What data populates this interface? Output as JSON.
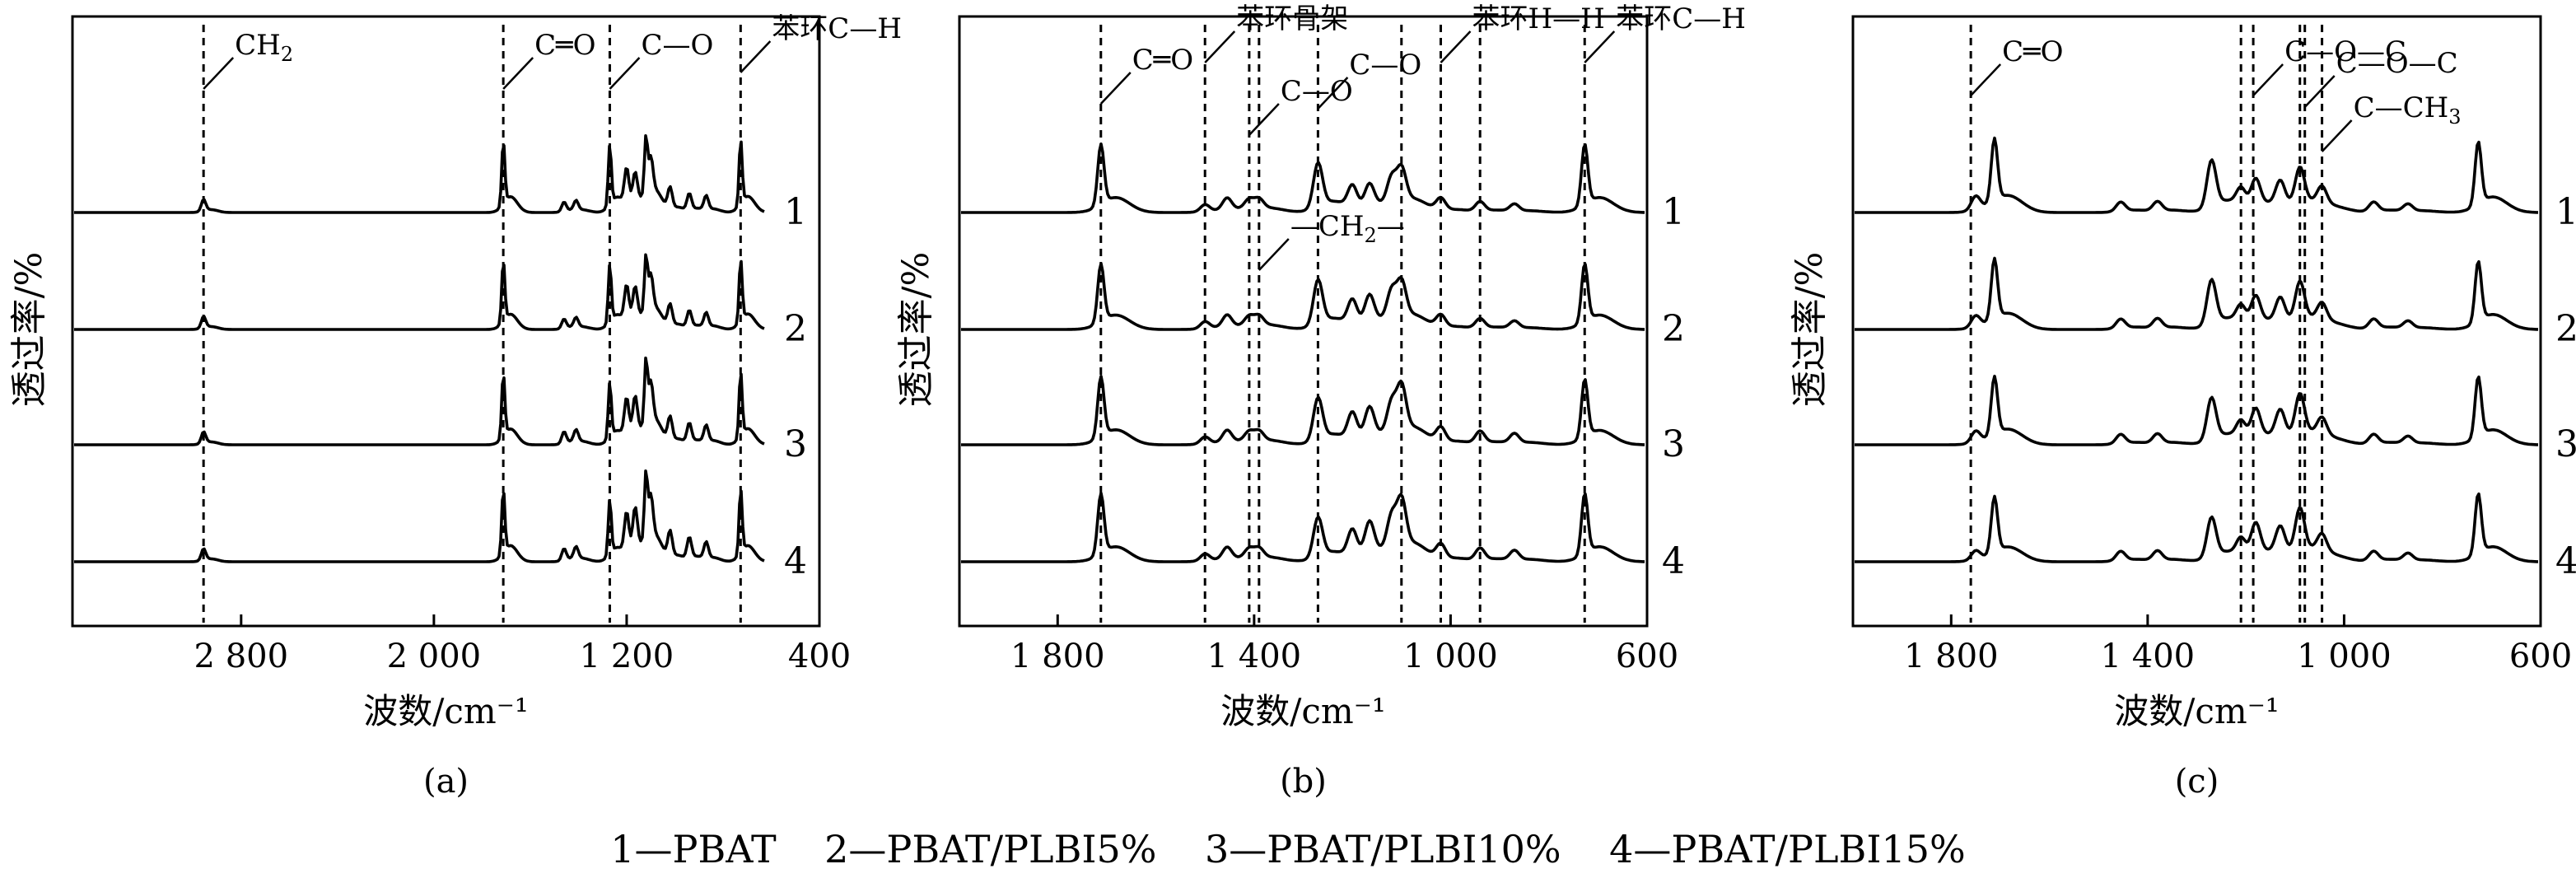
{
  "chart_data": [
    {
      "panel_label": "(a)",
      "type": "line",
      "xlabel": "波数/cm⁻¹",
      "ylabel": "透过率/%",
      "xlim": [
        3500,
        400
      ],
      "x_reversed": true,
      "x_ticks": [
        2800,
        2000,
        1200,
        400
      ],
      "x_tick_labels": [
        "2 800",
        "2 000",
        "1 200",
        "400"
      ],
      "series": [
        {
          "name": "1",
          "offset": 3,
          "peaks": [
            [
              2956,
              10
            ],
            [
              1712,
              55
            ],
            [
              1460,
              8
            ],
            [
              1410,
              8
            ],
            [
              1270,
              52
            ],
            [
              1200,
              30
            ],
            [
              1165,
              24
            ],
            [
              1120,
              50
            ],
            [
              1100,
              30
            ],
            [
              1020,
              18
            ],
            [
              940,
              14
            ],
            [
              870,
              12
            ],
            [
              727,
              56
            ]
          ]
        },
        {
          "name": "2",
          "offset": 2,
          "peaks": [
            [
              2956,
              10
            ],
            [
              1712,
              53
            ],
            [
              1460,
              8
            ],
            [
              1410,
              8
            ],
            [
              1270,
              50
            ],
            [
              1200,
              30
            ],
            [
              1165,
              26
            ],
            [
              1120,
              48
            ],
            [
              1100,
              30
            ],
            [
              1020,
              18
            ],
            [
              940,
              14
            ],
            [
              870,
              12
            ],
            [
              727,
              54
            ]
          ]
        },
        {
          "name": "3",
          "offset": 1,
          "peaks": [
            [
              2956,
              10
            ],
            [
              1712,
              55
            ],
            [
              1460,
              10
            ],
            [
              1410,
              10
            ],
            [
              1270,
              48
            ],
            [
              1200,
              32
            ],
            [
              1165,
              30
            ],
            [
              1120,
              56
            ],
            [
              1100,
              34
            ],
            [
              1020,
              20
            ],
            [
              940,
              16
            ],
            [
              870,
              14
            ],
            [
              727,
              56
            ]
          ]
        },
        {
          "name": "4",
          "offset": 0,
          "peaks": [
            [
              2956,
              10
            ],
            [
              1712,
              56
            ],
            [
              1460,
              10
            ],
            [
              1410,
              10
            ],
            [
              1270,
              48
            ],
            [
              1200,
              34
            ],
            [
              1165,
              34
            ],
            [
              1120,
              58
            ],
            [
              1100,
              36
            ],
            [
              1020,
              22
            ],
            [
              940,
              18
            ],
            [
              870,
              14
            ],
            [
              727,
              56
            ]
          ]
        }
      ],
      "reference_lines": [
        2956,
        1712,
        1270,
        727
      ],
      "annotations": [
        {
          "text": "CH",
          "sub": "2",
          "x": 2956
        },
        {
          "text": "C═O",
          "x": 1712
        },
        {
          "text": "C—O",
          "x": 1270
        },
        {
          "text": "苯环C—H",
          "x": 727
        }
      ]
    },
    {
      "panel_label": "(b)",
      "type": "line",
      "xlabel": "波数/cm⁻¹",
      "ylabel": "透过率/%",
      "xlim": [
        2000,
        600
      ],
      "x_reversed": true,
      "x_ticks": [
        1800,
        1400,
        1000,
        600
      ],
      "x_tick_labels": [
        "1 800",
        "1 400",
        "1 000",
        "600"
      ],
      "series": [
        {
          "name": "1",
          "offset": 3,
          "peaks": [
            [
              1712,
              52
            ],
            [
              1500,
              6
            ],
            [
              1455,
              10
            ],
            [
              1410,
              8
            ],
            [
              1390,
              8
            ],
            [
              1270,
              38
            ],
            [
              1200,
              18
            ],
            [
              1165,
              18
            ],
            [
              1120,
              22
            ],
            [
              1100,
              28
            ],
            [
              1020,
              10
            ],
            [
              940,
              8
            ],
            [
              870,
              6
            ],
            [
              727,
              52
            ]
          ]
        },
        {
          "name": "2",
          "offset": 2,
          "peaks": [
            [
              1712,
              50
            ],
            [
              1500,
              6
            ],
            [
              1455,
              10
            ],
            [
              1410,
              8
            ],
            [
              1390,
              8
            ],
            [
              1270,
              38
            ],
            [
              1200,
              20
            ],
            [
              1165,
              22
            ],
            [
              1120,
              24
            ],
            [
              1100,
              30
            ],
            [
              1020,
              10
            ],
            [
              940,
              8
            ],
            [
              870,
              6
            ],
            [
              727,
              50
            ]
          ]
        },
        {
          "name": "3",
          "offset": 1,
          "peaks": [
            [
              1712,
              52
            ],
            [
              1500,
              6
            ],
            [
              1455,
              10
            ],
            [
              1410,
              8
            ],
            [
              1390,
              8
            ],
            [
              1270,
              36
            ],
            [
              1200,
              22
            ],
            [
              1165,
              24
            ],
            [
              1120,
              26
            ],
            [
              1100,
              38
            ],
            [
              1020,
              12
            ],
            [
              940,
              10
            ],
            [
              870,
              8
            ],
            [
              727,
              50
            ]
          ]
        },
        {
          "name": "4",
          "offset": 0,
          "peaks": [
            [
              1712,
              52
            ],
            [
              1500,
              6
            ],
            [
              1455,
              10
            ],
            [
              1410,
              8
            ],
            [
              1390,
              8
            ],
            [
              1270,
              34
            ],
            [
              1200,
              22
            ],
            [
              1165,
              26
            ],
            [
              1120,
              28
            ],
            [
              1100,
              40
            ],
            [
              1020,
              12
            ],
            [
              940,
              10
            ],
            [
              870,
              8
            ],
            [
              727,
              52
            ]
          ]
        }
      ],
      "reference_lines": [
        1712,
        1500,
        1410,
        1390,
        1270,
        1100,
        1020,
        940,
        727
      ],
      "annotations": [
        {
          "text": "C═O",
          "x": 1712
        },
        {
          "text": "苯环骨架",
          "x": 1500
        },
        {
          "text": "C—O",
          "x": 1410
        },
        {
          "text": "C—O",
          "x": 1270
        },
        {
          "text": "苯环H—H",
          "x": 1020
        },
        {
          "text": "苯环C—H",
          "x": 727
        },
        {
          "text": "—CH",
          "sub": "2",
          "suffix": "—",
          "x": 1390
        }
      ]
    },
    {
      "panel_label": "(c)",
      "type": "line",
      "xlabel": "波数/cm⁻¹",
      "ylabel": "透过率/%",
      "xlim": [
        2000,
        600
      ],
      "x_reversed": true,
      "x_ticks": [
        1800,
        1400,
        1000,
        600
      ],
      "x_tick_labels": [
        "1 800",
        "1 400",
        "1 000",
        "600"
      ],
      "series": [
        {
          "name": "1",
          "offset": 3,
          "peaks": [
            [
              1750,
              12
            ],
            [
              1712,
              54
            ],
            [
              1455,
              8
            ],
            [
              1380,
              8
            ],
            [
              1270,
              40
            ],
            [
              1210,
              14
            ],
            [
              1180,
              22
            ],
            [
              1130,
              20
            ],
            [
              1090,
              30
            ],
            [
              1045,
              14
            ],
            [
              940,
              8
            ],
            [
              870,
              6
            ],
            [
              727,
              54
            ]
          ]
        },
        {
          "name": "2",
          "offset": 2,
          "peaks": [
            [
              1750,
              10
            ],
            [
              1712,
              52
            ],
            [
              1455,
              8
            ],
            [
              1380,
              8
            ],
            [
              1270,
              38
            ],
            [
              1210,
              14
            ],
            [
              1180,
              22
            ],
            [
              1130,
              20
            ],
            [
              1090,
              32
            ],
            [
              1045,
              14
            ],
            [
              940,
              8
            ],
            [
              870,
              6
            ],
            [
              727,
              52
            ]
          ]
        },
        {
          "name": "3",
          "offset": 1,
          "peaks": [
            [
              1750,
              10
            ],
            [
              1712,
              50
            ],
            [
              1455,
              8
            ],
            [
              1380,
              8
            ],
            [
              1270,
              36
            ],
            [
              1210,
              14
            ],
            [
              1180,
              24
            ],
            [
              1130,
              22
            ],
            [
              1090,
              34
            ],
            [
              1045,
              14
            ],
            [
              940,
              8
            ],
            [
              870,
              6
            ],
            [
              727,
              52
            ]
          ]
        },
        {
          "name": "4",
          "offset": 0,
          "peaks": [
            [
              1750,
              8
            ],
            [
              1712,
              48
            ],
            [
              1455,
              8
            ],
            [
              1380,
              8
            ],
            [
              1270,
              34
            ],
            [
              1210,
              14
            ],
            [
              1180,
              26
            ],
            [
              1130,
              22
            ],
            [
              1090,
              36
            ],
            [
              1045,
              14
            ],
            [
              940,
              8
            ],
            [
              870,
              6
            ],
            [
              727,
              52
            ]
          ]
        }
      ],
      "reference_lines": [
        1760,
        1210,
        1185,
        1090,
        1080,
        1045
      ],
      "annotations": [
        {
          "text": "C═O",
          "x": 1760
        },
        {
          "text": "C—O—C",
          "x": 1185
        },
        {
          "text": "C—O—C",
          "x": 1080
        },
        {
          "text": "C—CH",
          "sub": "3",
          "x": 1045
        }
      ]
    }
  ],
  "legend_text": "1—PBAT    2—PBAT/PLBI5%    3—PBAT/PLBI10%    4—PBAT/PLBI15%"
}
